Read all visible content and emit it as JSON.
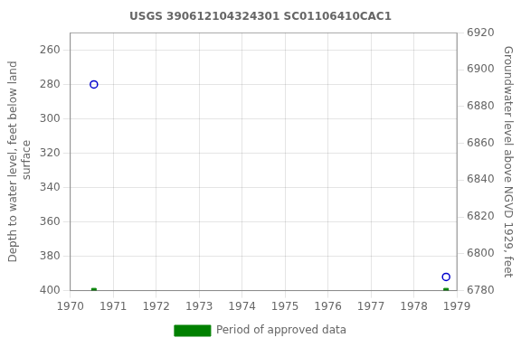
{
  "chart_data": {
    "type": "scatter",
    "title": "USGS 390612104324301 SC01106410CAC1",
    "y_label": "Depth to water level, feet below land\n surface",
    "y2_label": "Groundwater level above NGVD 1929, feet",
    "series": [
      {
        "color": "#0000cc",
        "marker": "open_circle",
        "line_style": "none",
        "x": [
          1970.55,
          1978.75
        ],
        "values": [
          280,
          392
        ]
      },
      {
        "name": "Period of approved data",
        "color": "#008000",
        "marker": "square",
        "line_style": "none",
        "x": [
          1970.55,
          1978.75
        ],
        "values": [
          400,
          400
        ]
      }
    ],
    "xlim": [
      1970,
      1979
    ],
    "xticks": [
      1970,
      1971,
      1972,
      1973,
      1974,
      1975,
      1976,
      1977,
      1978,
      1979
    ],
    "ylim": [
      400,
      250
    ],
    "yticks": [
      260,
      280,
      300,
      320,
      340,
      360,
      380,
      400
    ],
    "y2lim": [
      6780,
      6920
    ],
    "y2ticks": [
      6780,
      6800,
      6820,
      6840,
      6860,
      6880,
      6900,
      6920
    ],
    "grid": true,
    "legend": "bottom"
  }
}
